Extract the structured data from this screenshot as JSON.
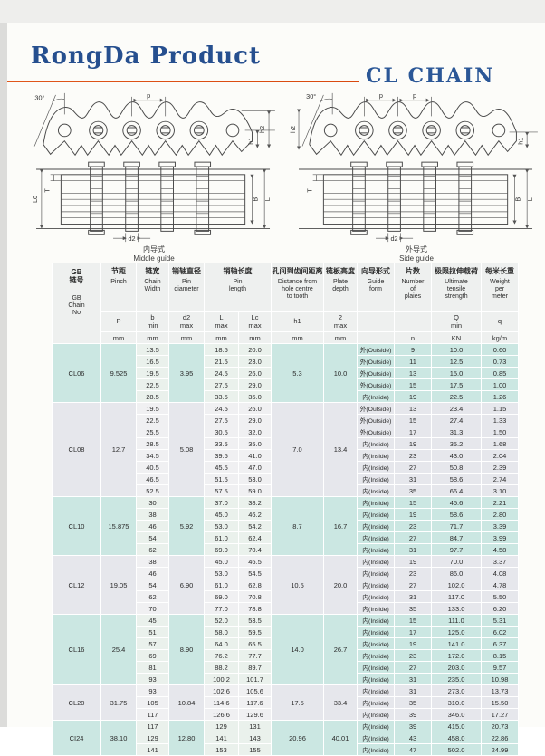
{
  "header": {
    "brand": "RongDa Product",
    "product": "CL CHAIN",
    "accent_color": "#e0561b",
    "title_color": "#264f8f"
  },
  "diagrams": {
    "labels": {
      "angle": "30°",
      "pitch": "p",
      "h1": "h1",
      "h2": "h2",
      "lc": "Lc",
      "t": "T",
      "b": "B",
      "l": "L",
      "d2": "d2"
    },
    "left": {
      "caption_cn": "内导式",
      "caption_en": "Middle guide"
    },
    "right": {
      "caption_cn": "外导式",
      "caption_en": "Side guide"
    }
  },
  "table": {
    "head": {
      "chain_cn": "GB\n链号",
      "chain_en": "GB\nChain\nNo",
      "cols": [
        {
          "cn": "节距",
          "en": "Pinch",
          "sym": "P",
          "unit": "mm"
        },
        {
          "cn": "链宽",
          "en": "Chain\nWidth",
          "sym": "b\nmin",
          "unit": "mm"
        },
        {
          "cn": "销轴直径",
          "en": "Pin\ndiameter",
          "sym": "d2\nmax",
          "unit": "mm"
        },
        {
          "cn": "销轴长度",
          "en": "Pin\nlength",
          "sym": "L\nmax",
          "sym2": "Lc\nmax",
          "unit": "mm",
          "unit2": "mm"
        },
        {
          "cn": "孔间到齿间距离",
          "en": "Distance from\nhole centre\nto tooth",
          "sym": "h1",
          "unit": "mm"
        },
        {
          "cn": "链板高度",
          "en": "Plate\ndepth",
          "sym": "2\nmax",
          "unit": "mm"
        },
        {
          "cn": "向导形式",
          "en": "Guide\nform",
          "sym": "",
          "unit": ""
        },
        {
          "cn": "片数",
          "en": "Number\nof\nplaies",
          "sym": "",
          "unit": "n"
        },
        {
          "cn": "极限拉伸载荷",
          "en": "Ultimate\ntensile\nstrength",
          "sym": "Q\nmin",
          "unit": "KN"
        },
        {
          "cn": "每米长重",
          "en": "Weight\nper\nmeter",
          "sym": "q",
          "unit": "kg/m"
        }
      ]
    },
    "sections": [
      {
        "chain_no": "CL06",
        "pitch": "9.525",
        "pin_dia": "3.95",
        "h1": "5.3",
        "plate_depth": "10.0",
        "rows": [
          {
            "w": "13.5",
            "l": "18.5",
            "lc": "20.0",
            "guide": "外(Outside)",
            "n": "9",
            "q_kn": "10.0",
            "kg": "0.60"
          },
          {
            "w": "16.5",
            "l": "21.5",
            "lc": "23.0",
            "guide": "外(Outside)",
            "n": "11",
            "q_kn": "12.5",
            "kg": "0.73"
          },
          {
            "w": "19.5",
            "l": "24.5",
            "lc": "26.0",
            "guide": "外(Outside)",
            "n": "13",
            "q_kn": "15.0",
            "kg": "0.85"
          },
          {
            "w": "22.5",
            "l": "27.5",
            "lc": "29.0",
            "guide": "外(Outside)",
            "n": "15",
            "q_kn": "17.5",
            "kg": "1.00"
          },
          {
            "w": "28.5",
            "l": "33.5",
            "lc": "35.0",
            "guide": "内(Inside)",
            "n": "19",
            "q_kn": "22.5",
            "kg": "1.26"
          }
        ]
      },
      {
        "chain_no": "CL08",
        "pitch": "12.7",
        "pin_dia": "5.08",
        "h1": "7.0",
        "plate_depth": "13.4",
        "rows": [
          {
            "w": "19.5",
            "l": "24.5",
            "lc": "26.0",
            "guide": "外(Outside)",
            "n": "13",
            "q_kn": "23.4",
            "kg": "1.15"
          },
          {
            "w": "22.5",
            "l": "27.5",
            "lc": "29.0",
            "guide": "外(Outside)",
            "n": "15",
            "q_kn": "27.4",
            "kg": "1.33"
          },
          {
            "w": "25.5",
            "l": "30.5",
            "lc": "32.0",
            "guide": "外(Outside)",
            "n": "17",
            "q_kn": "31.3",
            "kg": "1.50"
          },
          {
            "w": "28.5",
            "l": "33.5",
            "lc": "35.0",
            "guide": "内(Inside)",
            "n": "19",
            "q_kn": "35.2",
            "kg": "1.68"
          },
          {
            "w": "34.5",
            "l": "39.5",
            "lc": "41.0",
            "guide": "内(Inside)",
            "n": "23",
            "q_kn": "43.0",
            "kg": "2.04"
          },
          {
            "w": "40.5",
            "l": "45.5",
            "lc": "47.0",
            "guide": "内(Inside)",
            "n": "27",
            "q_kn": "50.8",
            "kg": "2.39"
          },
          {
            "w": "46.5",
            "l": "51.5",
            "lc": "53.0",
            "guide": "内(Inside)",
            "n": "31",
            "q_kn": "58.6",
            "kg": "2.74"
          },
          {
            "w": "52.5",
            "l": "57.5",
            "lc": "59.0",
            "guide": "内(Inside)",
            "n": "35",
            "q_kn": "66.4",
            "kg": "3.10"
          }
        ]
      },
      {
        "chain_no": "CL10",
        "pitch": "15.875",
        "pin_dia": "5.92",
        "h1": "8.7",
        "plate_depth": "16.7",
        "rows": [
          {
            "w": "30",
            "l": "37.0",
            "lc": "38.2",
            "guide": "内(Inside)",
            "n": "15",
            "q_kn": "45.6",
            "kg": "2.21"
          },
          {
            "w": "38",
            "l": "45.0",
            "lc": "46.2",
            "guide": "内(Inside)",
            "n": "19",
            "q_kn": "58.6",
            "kg": "2.80"
          },
          {
            "w": "46",
            "l": "53.0",
            "lc": "54.2",
            "guide": "内(Inside)",
            "n": "23",
            "q_kn": "71.7",
            "kg": "3.39"
          },
          {
            "w": "54",
            "l": "61.0",
            "lc": "62.4",
            "guide": "内(Inside)",
            "n": "27",
            "q_kn": "84.7",
            "kg": "3.99"
          },
          {
            "w": "62",
            "l": "69.0",
            "lc": "70.4",
            "guide": "内(Inside)",
            "n": "31",
            "q_kn": "97.7",
            "kg": "4.58"
          }
        ]
      },
      {
        "chain_no": "CL12",
        "pitch": "19.05",
        "pin_dia": "6.90",
        "h1": "10.5",
        "plate_depth": "20.0",
        "rows": [
          {
            "w": "38",
            "l": "45.0",
            "lc": "46.5",
            "guide": "内(Inside)",
            "n": "19",
            "q_kn": "70.0",
            "kg": "3.37"
          },
          {
            "w": "46",
            "l": "53.0",
            "lc": "54.5",
            "guide": "内(Inside)",
            "n": "23",
            "q_kn": "86.0",
            "kg": "4.08"
          },
          {
            "w": "54",
            "l": "61.0",
            "lc": "62.8",
            "guide": "内(Inside)",
            "n": "27",
            "q_kn": "102.0",
            "kg": "4.78"
          },
          {
            "w": "62",
            "l": "69.0",
            "lc": "70.8",
            "guide": "内(Inside)",
            "n": "31",
            "q_kn": "117.0",
            "kg": "5.50"
          },
          {
            "w": "70",
            "l": "77.0",
            "lc": "78.8",
            "guide": "内(Inside)",
            "n": "35",
            "q_kn": "133.0",
            "kg": "6.20"
          }
        ]
      },
      {
        "chain_no": "CL16",
        "pitch": "25.4",
        "pin_dia": "8.90",
        "h1": "14.0",
        "plate_depth": "26.7",
        "rows": [
          {
            "w": "45",
            "l": "52.0",
            "lc": "53.5",
            "guide": "内(Inside)",
            "n": "15",
            "q_kn": "111.0",
            "kg": "5.31"
          },
          {
            "w": "51",
            "l": "58.0",
            "lc": "59.5",
            "guide": "内(Inside)",
            "n": "17",
            "q_kn": "125.0",
            "kg": "6.02"
          },
          {
            "w": "57",
            "l": "64.0",
            "lc": "65.5",
            "guide": "内(Inside)",
            "n": "19",
            "q_kn": "141.0",
            "kg": "6.37"
          },
          {
            "w": "69",
            "l": "76.2",
            "lc": "77.7",
            "guide": "内(Inside)",
            "n": "23",
            "q_kn": "172.0",
            "kg": "8.15"
          },
          {
            "w": "81",
            "l": "88.2",
            "lc": "89.7",
            "guide": "内(Inside)",
            "n": "27",
            "q_kn": "203.0",
            "kg": "9.57"
          },
          {
            "w": "93",
            "l": "100.2",
            "lc": "101.7",
            "guide": "内(Inside)",
            "n": "31",
            "q_kn": "235.0",
            "kg": "10.98"
          }
        ]
      },
      {
        "chain_no": "CL20",
        "pitch": "31.75",
        "pin_dia": "10.84",
        "h1": "17.5",
        "plate_depth": "33.4",
        "rows": [
          {
            "w": "93",
            "l": "102.6",
            "lc": "105.6",
            "guide": "内(Inside)",
            "n": "31",
            "q_kn": "273.0",
            "kg": "13.73"
          },
          {
            "w": "105",
            "l": "114.6",
            "lc": "117.6",
            "guide": "内(Inside)",
            "n": "35",
            "q_kn": "310.0",
            "kg": "15.50"
          },
          {
            "w": "117",
            "l": "126.6",
            "lc": "129.6",
            "guide": "内(Inside)",
            "n": "39",
            "q_kn": "346.0",
            "kg": "17.27"
          }
        ]
      },
      {
        "chain_no": "CI24",
        "pitch": "38.10",
        "pin_dia": "12.80",
        "h1": "20.96",
        "plate_depth": "40.01",
        "rows": [
          {
            "w": "117",
            "l": "129",
            "lc": "131",
            "guide": "内(Inside)",
            "n": "39",
            "q_kn": "415.0",
            "kg": "20.73"
          },
          {
            "w": "129",
            "l": "141",
            "lc": "143",
            "guide": "内(Inside)",
            "n": "43",
            "q_kn": "458.0",
            "kg": "22.86"
          },
          {
            "w": "141",
            "l": "153",
            "lc": "155",
            "guide": "内(Inside)",
            "n": "47",
            "q_kn": "502.0",
            "kg": "24.99"
          }
        ]
      }
    ]
  }
}
